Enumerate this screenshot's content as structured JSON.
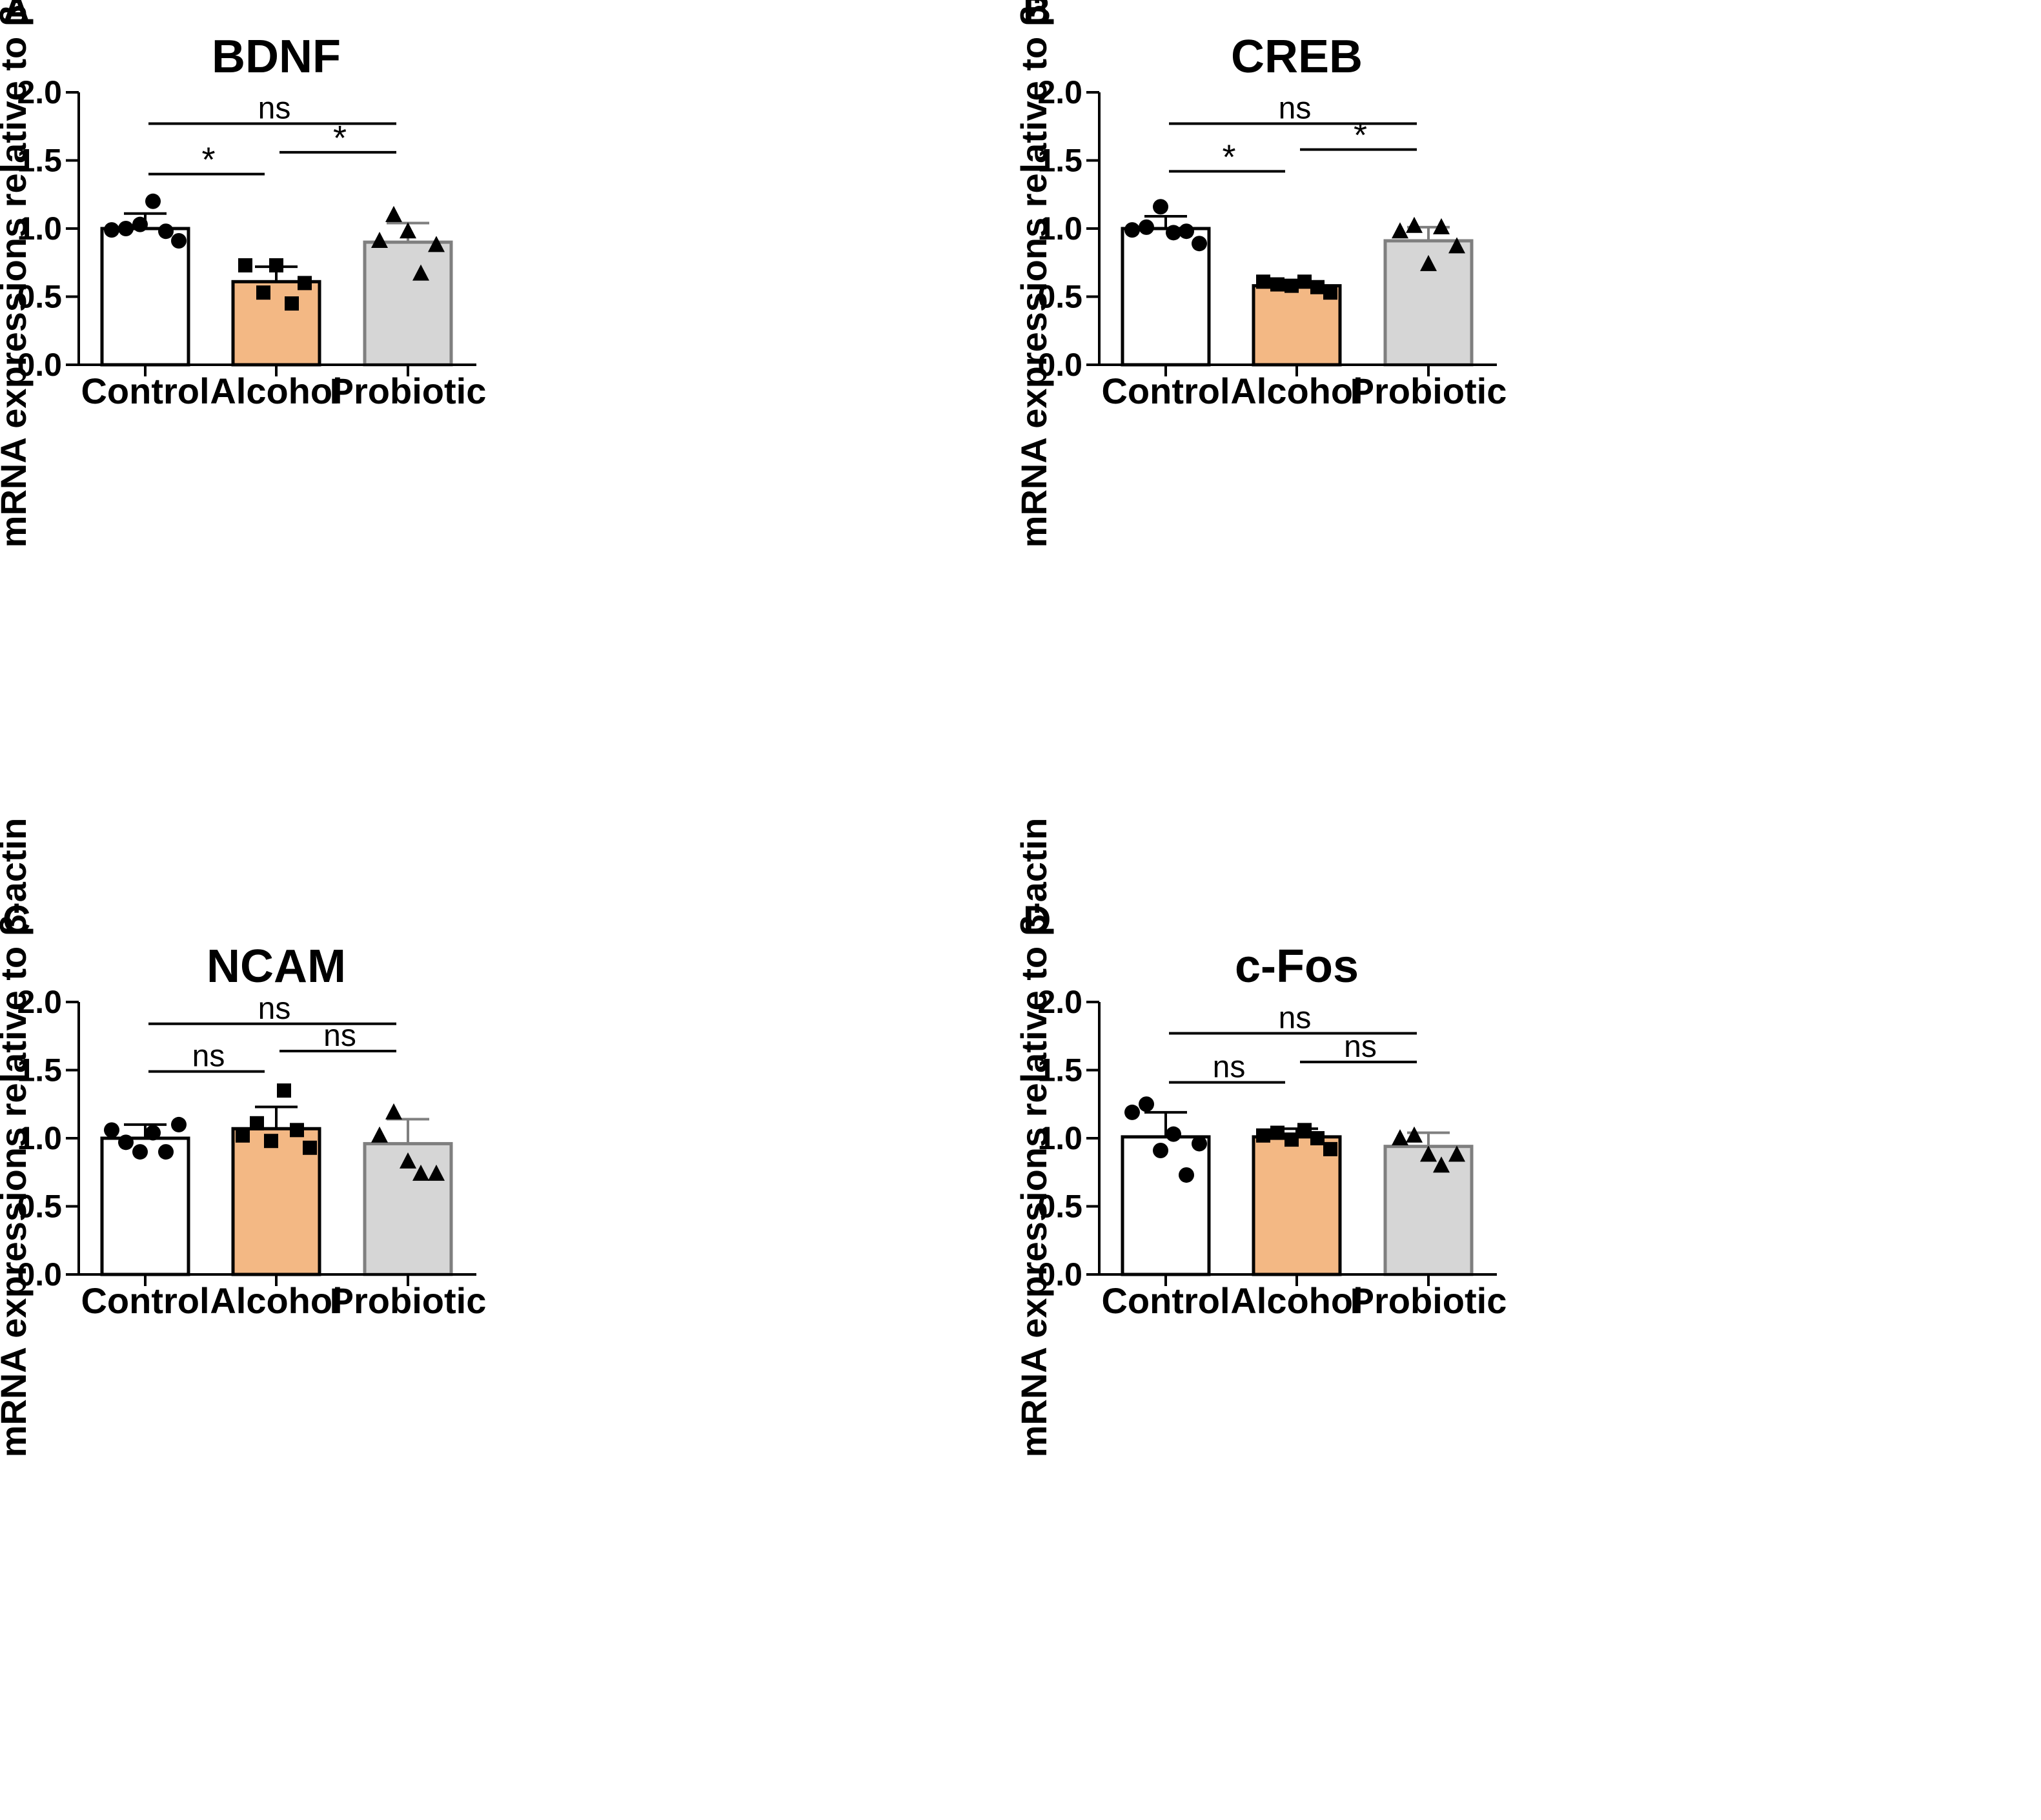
{
  "chart_data": [
    {
      "type": "bar",
      "panel_label": "A",
      "title": "BDNF",
      "ylabel": "mRNA expressions relative to β-actin",
      "xlabel": "",
      "ylim": [
        0,
        2.0
      ],
      "yticks": [
        "0.0",
        "0.5",
        "1.0",
        "1.5",
        "2.0"
      ],
      "categories": [
        "Control",
        "Alcohol",
        "Probiotic"
      ],
      "values": [
        1.0,
        0.61,
        0.9
      ],
      "errors": [
        0.11,
        0.11,
        0.14
      ],
      "fills": [
        "#ffffff",
        "#f3b884",
        "#d6d6d6"
      ],
      "edges": [
        "#000000",
        "#000000",
        "#7f7f7f"
      ],
      "markers": [
        "circle",
        "square",
        "triangle"
      ],
      "points": [
        [
          0.99,
          1.0,
          1.03,
          1.2,
          0.98,
          0.91
        ],
        [
          0.73,
          0.53,
          0.73,
          0.45,
          0.6
        ],
        [
          0.91,
          1.1,
          0.98,
          0.67,
          0.88
        ]
      ],
      "comparisons": [
        {
          "from": 0,
          "to": 2,
          "label": "ns",
          "y": 1.77
        },
        {
          "from": 1,
          "to": 2,
          "label": "*",
          "y": 1.56
        },
        {
          "from": 0,
          "to": 1,
          "label": "*",
          "y": 1.4
        }
      ]
    },
    {
      "type": "bar",
      "panel_label": "B",
      "title": "CREB",
      "ylabel": "mRNA expressions relative to β-actin",
      "xlabel": "",
      "ylim": [
        0,
        2.0
      ],
      "yticks": [
        "0.0",
        "0.5",
        "1.0",
        "1.5",
        "2.0"
      ],
      "categories": [
        "Control",
        "Alcohol",
        "Probiotic"
      ],
      "values": [
        1.0,
        0.58,
        0.91
      ],
      "errors": [
        0.09,
        0.03,
        0.1
      ],
      "fills": [
        "#ffffff",
        "#f3b884",
        "#d6d6d6"
      ],
      "edges": [
        "#000000",
        "#000000",
        "#7f7f7f"
      ],
      "markers": [
        "circle",
        "square",
        "triangle"
      ],
      "points": [
        [
          0.99,
          1.01,
          1.16,
          0.97,
          0.98,
          0.89
        ],
        [
          0.61,
          0.59,
          0.58,
          0.61,
          0.57,
          0.53
        ],
        [
          0.98,
          1.02,
          0.74,
          1.01,
          0.87
        ]
      ],
      "comparisons": [
        {
          "from": 0,
          "to": 2,
          "label": "ns",
          "y": 1.77
        },
        {
          "from": 1,
          "to": 2,
          "label": "*",
          "y": 1.58
        },
        {
          "from": 0,
          "to": 1,
          "label": "*",
          "y": 1.42
        }
      ]
    },
    {
      "type": "bar",
      "panel_label": "C",
      "title": "NCAM",
      "ylabel": "mRNA expressions relative to β-actin",
      "xlabel": "",
      "ylim": [
        0,
        2.0
      ],
      "yticks": [
        "0.0",
        "0.5",
        "1.0",
        "1.5",
        "2.0"
      ],
      "categories": [
        "Control",
        "Alcohol",
        "Probiotic"
      ],
      "values": [
        1.0,
        1.07,
        0.96
      ],
      "errors": [
        0.1,
        0.16,
        0.18
      ],
      "fills": [
        "#ffffff",
        "#f3b884",
        "#d6d6d6"
      ],
      "edges": [
        "#000000",
        "#000000",
        "#7f7f7f"
      ],
      "markers": [
        "circle",
        "square",
        "triangle"
      ],
      "points": [
        [
          1.06,
          0.97,
          0.9,
          1.04,
          0.9,
          1.1
        ],
        [
          1.02,
          1.11,
          0.98,
          1.35,
          1.06,
          0.93
        ],
        [
          1.02,
          1.19,
          0.83,
          0.74,
          0.74
        ]
      ],
      "comparisons": [
        {
          "from": 0,
          "to": 2,
          "label": "ns",
          "y": 1.84
        },
        {
          "from": 1,
          "to": 2,
          "label": "ns",
          "y": 1.64
        },
        {
          "from": 0,
          "to": 1,
          "label": "ns",
          "y": 1.49
        }
      ]
    },
    {
      "type": "bar",
      "panel_label": "D",
      "title": "c-Fos",
      "ylabel": "mRNA expressions relative to β-actin",
      "xlabel": "",
      "ylim": [
        0,
        2.0
      ],
      "yticks": [
        "0.0",
        "0.5",
        "1.0",
        "1.5",
        "2.0"
      ],
      "categories": [
        "Control",
        "Alcohol",
        "Probiotic"
      ],
      "values": [
        1.01,
        1.01,
        0.94
      ],
      "errors": [
        0.18,
        0.06,
        0.1
      ],
      "fills": [
        "#ffffff",
        "#f3b884",
        "#d6d6d6"
      ],
      "edges": [
        "#000000",
        "#000000",
        "#7f7f7f"
      ],
      "markers": [
        "circle",
        "square",
        "triangle"
      ],
      "points": [
        [
          1.19,
          1.25,
          0.91,
          1.03,
          0.73,
          0.96
        ],
        [
          1.02,
          1.04,
          0.99,
          1.06,
          1.0,
          0.92
        ],
        [
          1.0,
          1.02,
          0.88,
          0.8,
          0.88
        ]
      ],
      "comparisons": [
        {
          "from": 0,
          "to": 2,
          "label": "ns",
          "y": 1.77
        },
        {
          "from": 1,
          "to": 2,
          "label": "ns",
          "y": 1.56
        },
        {
          "from": 0,
          "to": 1,
          "label": "ns",
          "y": 1.41
        }
      ]
    }
  ]
}
